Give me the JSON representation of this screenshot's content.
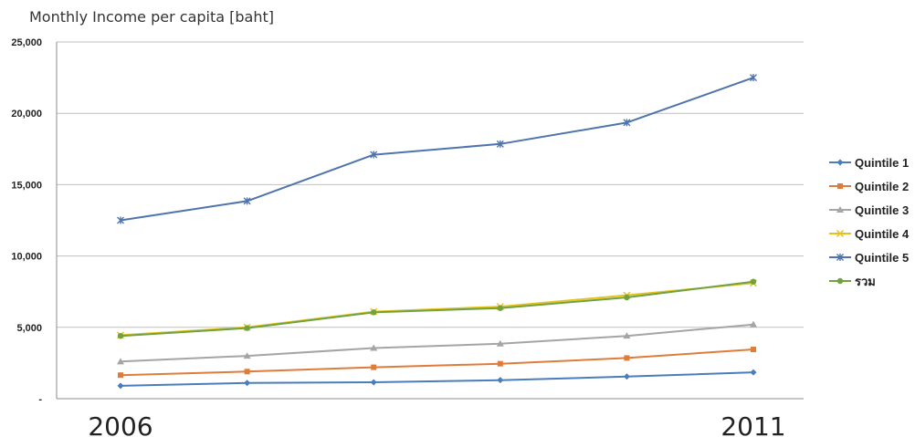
{
  "chart_data": {
    "type": "line",
    "title": "Monthly Income per capita [baht]",
    "xlabel": "",
    "ylabel": "",
    "x": [
      1,
      2,
      3,
      4,
      5,
      6
    ],
    "x_tick_labels": [
      {
        "x": 1,
        "label": "2006"
      },
      {
        "x": 6,
        "label": "2011"
      }
    ],
    "ylim": [
      0,
      25000
    ],
    "y_ticks": [
      0,
      5000,
      10000,
      15000,
      20000,
      25000
    ],
    "y_tick_labels": [
      "-",
      "5,000",
      "10,000",
      "15,000",
      "20,000",
      "25,000"
    ],
    "grid": true,
    "legend_position": "right",
    "series": [
      {
        "name": "Quintile 1",
        "color": "#4a7ebb",
        "marker": "diamond",
        "values": [
          900,
          1100,
          1150,
          1300,
          1550,
          1850
        ]
      },
      {
        "name": "Quintile 2",
        "color": "#e07b39",
        "marker": "square",
        "values": [
          1650,
          1900,
          2200,
          2450,
          2850,
          3450
        ]
      },
      {
        "name": "Quintile 3",
        "color": "#a5a5a5",
        "marker": "triangle",
        "values": [
          2600,
          3000,
          3550,
          3850,
          4400,
          5200
        ]
      },
      {
        "name": "Quintile 4",
        "color": "#e6c220",
        "marker": "x",
        "values": [
          4450,
          5000,
          6100,
          6450,
          7250,
          8100
        ]
      },
      {
        "name": "Quintile 5",
        "color": "#4f74ad",
        "marker": "star",
        "values": [
          12500,
          13850,
          17100,
          17850,
          19350,
          22500
        ]
      },
      {
        "name": "รวม",
        "color": "#70a23f",
        "marker": "circle",
        "values": [
          4400,
          4950,
          6050,
          6350,
          7100,
          8200
        ]
      }
    ]
  }
}
